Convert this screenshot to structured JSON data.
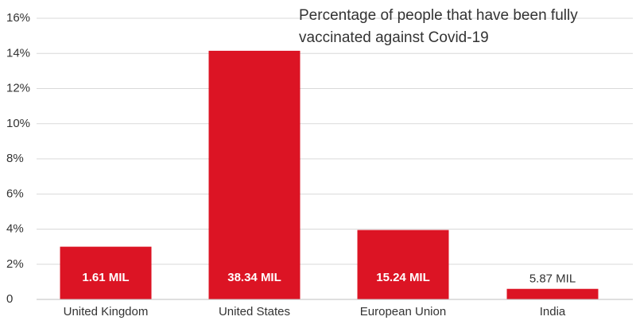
{
  "chart_data": {
    "type": "bar",
    "title_lines": [
      "Percentage of people that have been fully",
      "vaccinated against Covid-19"
    ],
    "categories": [
      "United Kingdom",
      "United States",
      "European Union",
      "India"
    ],
    "values": [
      3.0,
      14.15,
      3.95,
      0.6
    ],
    "data_labels": [
      "1.61 MIL",
      "38.34 MIL",
      "15.24 MIL",
      "5.87 MIL"
    ],
    "y_ticks": [
      0,
      2,
      4,
      6,
      8,
      10,
      12,
      14,
      16
    ],
    "y_tick_labels": [
      "0",
      "2%",
      "4%",
      "6%",
      "8%",
      "10%",
      "12%",
      "14%",
      "16%"
    ],
    "ylim": [
      0,
      16
    ],
    "xlabel": "",
    "ylabel": "",
    "grid": true,
    "bar_color": "#dc1424",
    "grid_color": "#d9d9d9",
    "label_inside_color": "#ffffff",
    "label_outside_color": "#333333"
  }
}
